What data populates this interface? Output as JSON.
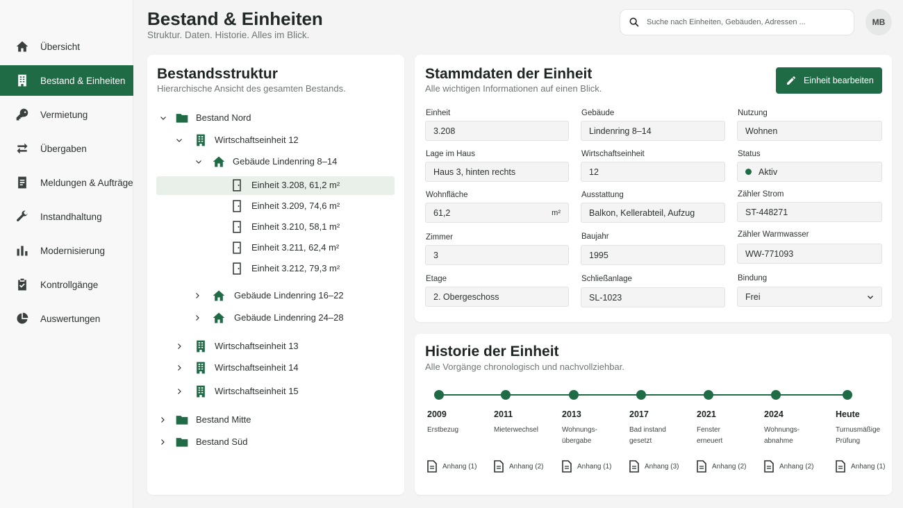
{
  "header": {
    "title": "Bestand & Einheiten",
    "subtitle": "Struktur. Daten. Historie. Alles im Blick.",
    "search_placeholder": "Suche nach Einheiten, Gebäuden, Adressen ...",
    "avatar_initials": "MB"
  },
  "sidebar": {
    "items": [
      {
        "label": "Übersicht",
        "icon": "home-icon"
      },
      {
        "label": "Bestand & Einheiten",
        "icon": "building-icon",
        "active": true
      },
      {
        "label": "Vermietung",
        "icon": "key-icon"
      },
      {
        "label": "Übergaben",
        "icon": "swap-icon"
      },
      {
        "label": "Meldungen & Aufträge",
        "icon": "document-icon"
      },
      {
        "label": "Instandhaltung",
        "icon": "wrench-icon"
      },
      {
        "label": "Modernisierung",
        "icon": "bar-chart-icon"
      },
      {
        "label": "Kontrollgänge",
        "icon": "clipboard-check-icon"
      },
      {
        "label": "Auswertungen",
        "icon": "pie-chart-icon"
      }
    ]
  },
  "tree": {
    "title": "Bestandsstruktur",
    "subtitle": "Hierarchische Ansicht des gesamten Bestands.",
    "nodes": [
      {
        "label": "Bestand Nord",
        "type": "folder",
        "expanded": true
      },
      {
        "label": "Wirtschaftseinheit 12",
        "type": "building",
        "expanded": true
      },
      {
        "label": "Gebäude Lindenring 8–14",
        "type": "house",
        "expanded": true
      },
      {
        "label": "Einheit 3.208, 61,2 m²",
        "type": "door",
        "selected": true
      },
      {
        "label": "Einheit 3.209, 74,6 m²",
        "type": "door"
      },
      {
        "label": "Einheit 3.210, 58,1 m²",
        "type": "door"
      },
      {
        "label": "Einheit 3.211, 62,4 m²",
        "type": "door"
      },
      {
        "label": "Einheit 3.212, 79,3 m²",
        "type": "door"
      },
      {
        "label": "Gebäude Lindenring 16–22",
        "type": "house",
        "expanded": false
      },
      {
        "label": "Gebäude Lindenring 24–28",
        "type": "house",
        "expanded": false
      },
      {
        "label": "Wirtschaftseinheit 13",
        "type": "building",
        "expanded": false
      },
      {
        "label": "Wirtschaftseinheit 14",
        "type": "building",
        "expanded": false
      },
      {
        "label": "Wirtschaftseinheit 15",
        "type": "building",
        "expanded": false
      },
      {
        "label": "Bestand Mitte",
        "type": "folder",
        "expanded": false
      },
      {
        "label": "Bestand Süd",
        "type": "folder",
        "expanded": false
      }
    ]
  },
  "stammdaten": {
    "title": "Stammdaten der Einheit",
    "subtitle": "Alle wichtigen Informationen auf einen Blick.",
    "edit_label": "Einheit bearbeiten",
    "fields": {
      "einheit": {
        "label": "Einheit",
        "value": "3.208"
      },
      "gebaeude": {
        "label": "Gebäude",
        "value": "Lindenring 8–14"
      },
      "nutzung": {
        "label": "Nutzung",
        "value": "Wohnen"
      },
      "lage": {
        "label": "Lage im Haus",
        "value": "Haus 3, hinten rechts"
      },
      "wirtschaftseinheit": {
        "label": "Wirtschaftseinheit",
        "value": "12"
      },
      "status": {
        "label": "Status",
        "value": "Aktiv"
      },
      "wohnflaeche": {
        "label": "Wohnfläche",
        "value": "61,2",
        "unit": "m²"
      },
      "ausstattung": {
        "label": "Ausstattung",
        "value": "Balkon, Kellerabteil, Aufzug"
      },
      "zaehler_strom": {
        "label": "Zähler Strom",
        "value": "ST-448271"
      },
      "zimmer": {
        "label": "Zimmer",
        "value": "3"
      },
      "baujahr": {
        "label": "Baujahr",
        "value": "1995"
      },
      "zaehler_warmwasser": {
        "label": "Zähler Warmwasser",
        "value": "WW-771093"
      },
      "etage": {
        "label": "Etage",
        "value": "2. Obergeschoss"
      },
      "schliessanlage": {
        "label": "Schließanlage",
        "value": "SL-1023"
      },
      "bindung": {
        "label": "Bindung",
        "value": "Frei"
      }
    },
    "colors": {
      "accent": "#1f6b45",
      "status_active": "#1f6b45"
    }
  },
  "historie": {
    "title": "Historie der Einheit",
    "subtitle": "Alle Vorgänge chronologisch und nachvollziehbar.",
    "events": [
      {
        "year": "2009",
        "desc": "Erstbezug",
        "attachment": "Anhang (1)"
      },
      {
        "year": "2011",
        "desc": "Mieterwechsel",
        "attachment": "Anhang (2)"
      },
      {
        "year": "2013",
        "desc": "Wohnungs-\nübergabe",
        "attachment": "Anhang (1)"
      },
      {
        "year": "2017",
        "desc": "Bad instand\ngesetzt",
        "attachment": "Anhang (3)"
      },
      {
        "year": "2021",
        "desc": "Fenster\nerneuert",
        "attachment": "Anhang (2)"
      },
      {
        "year": "2024",
        "desc": "Wohnungs-\nabnahme",
        "attachment": "Anhang (2)"
      },
      {
        "year": "Heute",
        "desc": "Turnusmäßige\nPrüfung",
        "attachment": "Anhang (1)"
      }
    ]
  }
}
